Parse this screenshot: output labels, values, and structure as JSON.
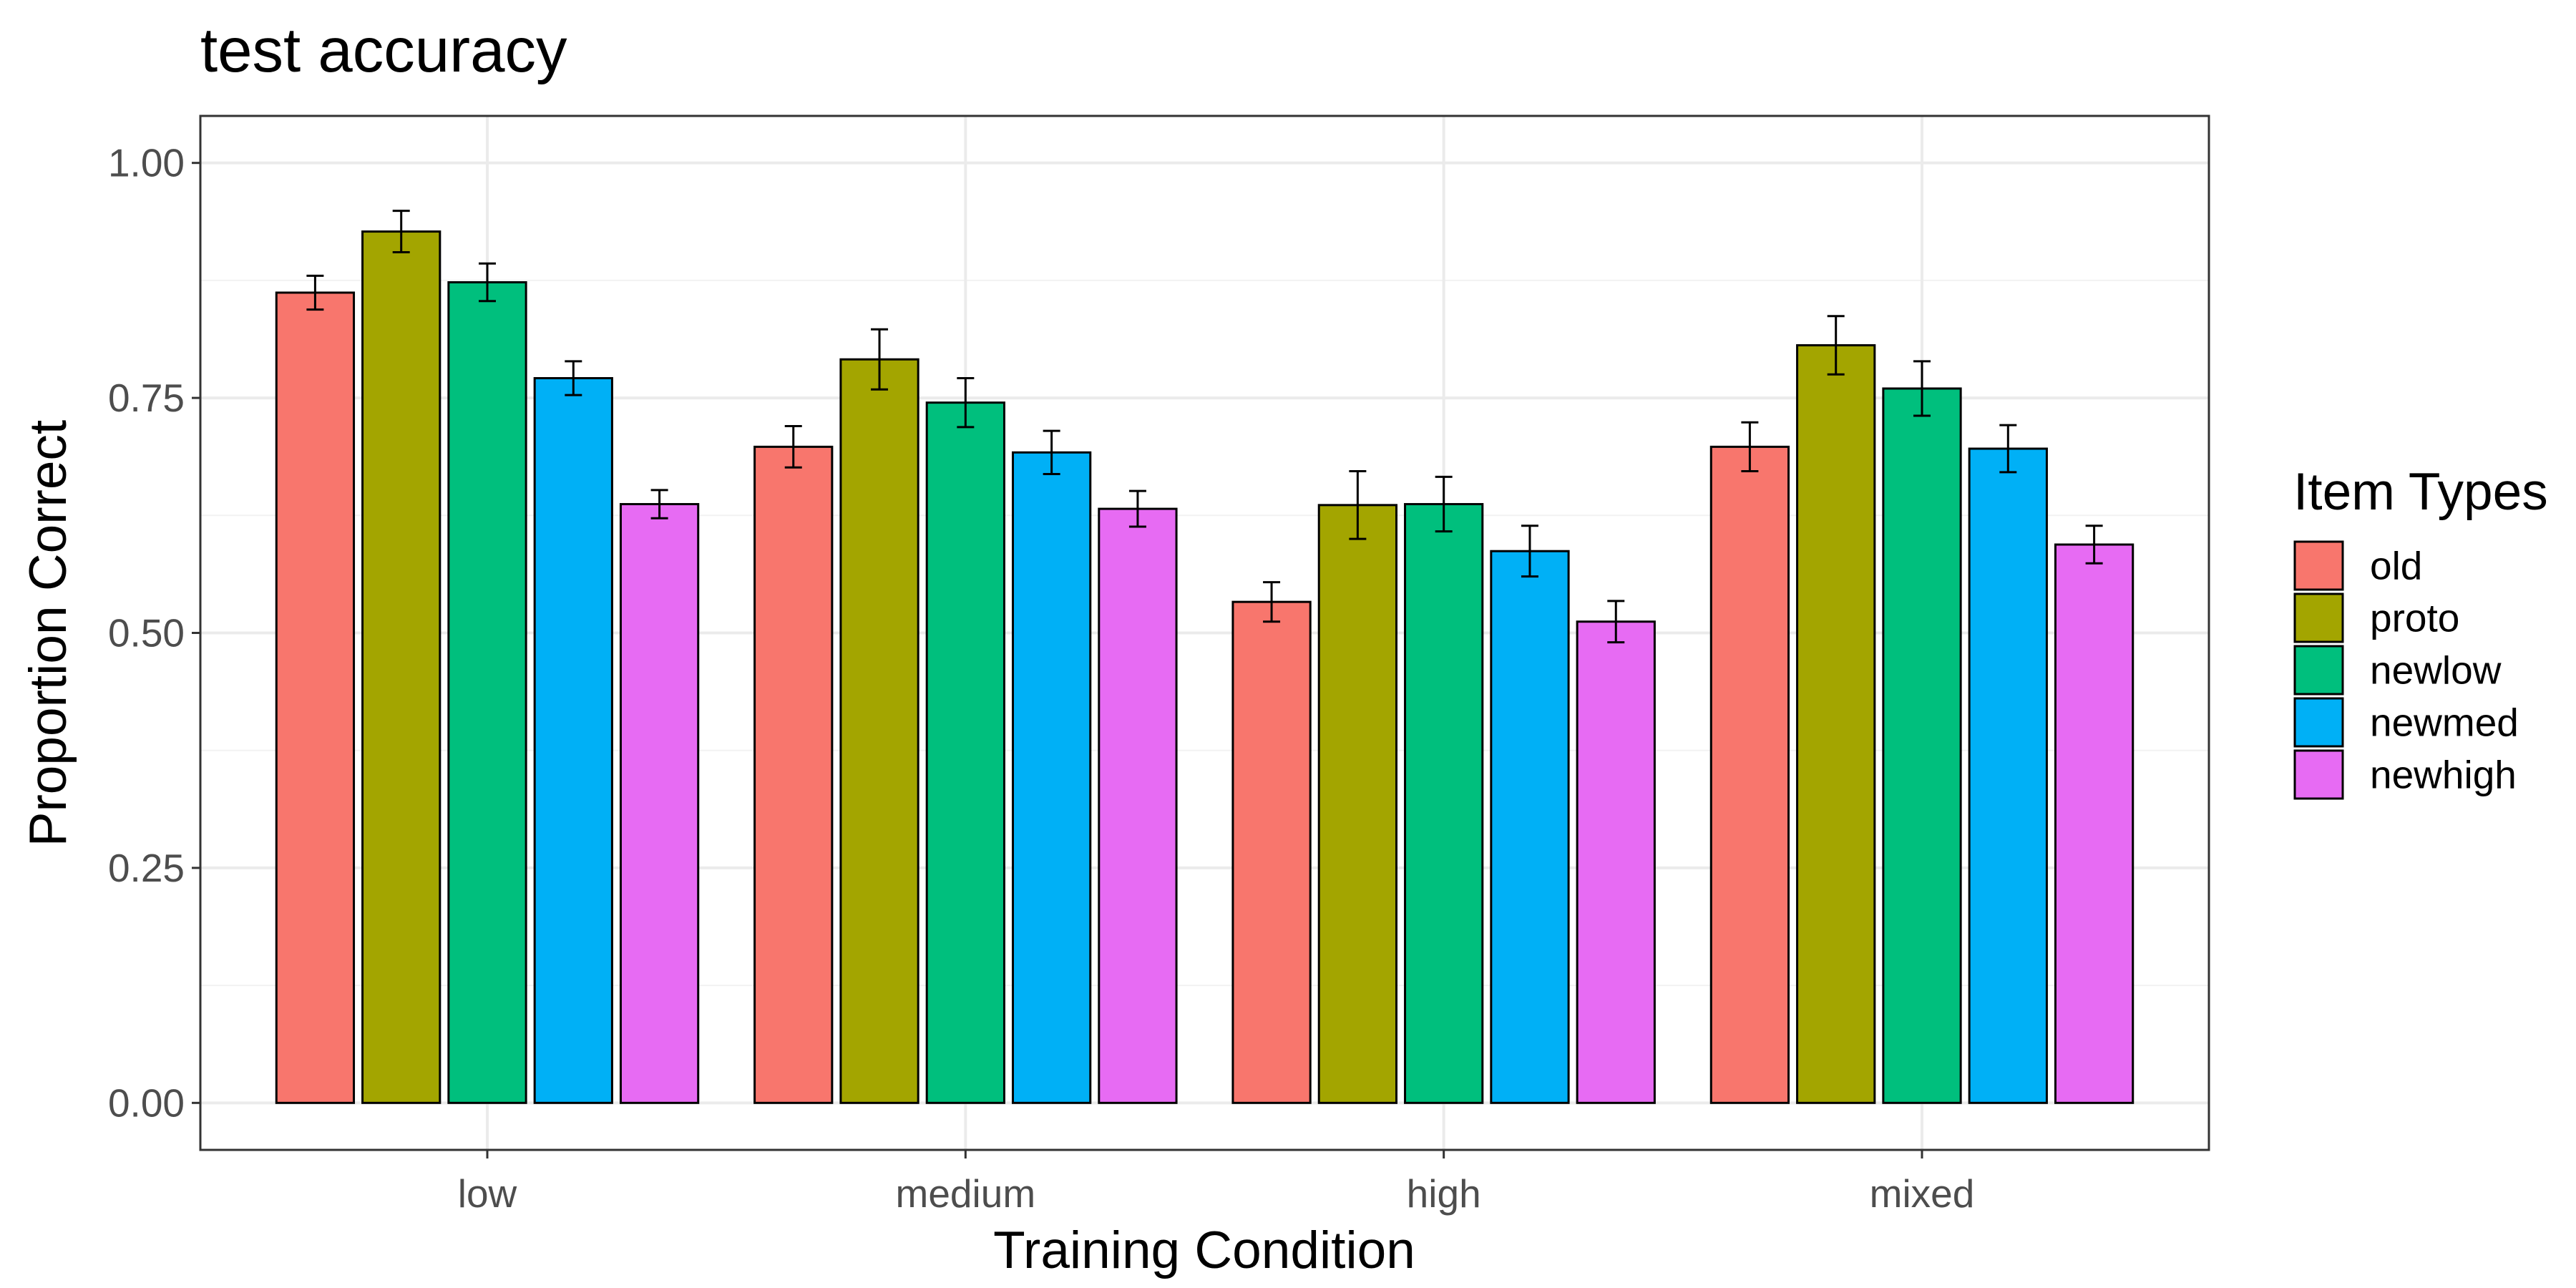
{
  "chart_data": {
    "type": "bar",
    "title": "test accuracy",
    "xlabel": "Training Condition",
    "ylabel": "Proportion Correct",
    "categories": [
      "low",
      "medium",
      "high",
      "mixed"
    ],
    "ylim": [
      -0.05,
      1.05
    ],
    "yticks": [
      0.0,
      0.25,
      0.5,
      0.75,
      1.0
    ],
    "ytick_labels": [
      "0.00",
      "0.25",
      "0.50",
      "0.75",
      "1.00"
    ],
    "grid": true,
    "legend": {
      "title": "Item Types",
      "position": "right"
    },
    "series": [
      {
        "name": "old",
        "color": "#F8766D",
        "values": [
          0.862,
          0.698,
          0.533,
          0.698
        ],
        "errors": [
          0.018,
          0.022,
          0.021,
          0.026
        ]
      },
      {
        "name": "proto",
        "color": "#A3A500",
        "values": [
          0.927,
          0.791,
          0.636,
          0.806
        ],
        "errors": [
          0.022,
          0.032,
          0.036,
          0.031
        ]
      },
      {
        "name": "newlow",
        "color": "#00BF7D",
        "values": [
          0.873,
          0.745,
          0.637,
          0.76
        ],
        "errors": [
          0.02,
          0.026,
          0.029,
          0.029
        ]
      },
      {
        "name": "newmed",
        "color": "#00B0F6",
        "values": [
          0.771,
          0.692,
          0.587,
          0.696
        ],
        "errors": [
          0.018,
          0.023,
          0.027,
          0.025
        ]
      },
      {
        "name": "newhigh",
        "color": "#E76BF3",
        "values": [
          0.637,
          0.632,
          0.512,
          0.594
        ],
        "errors": [
          0.015,
          0.019,
          0.022,
          0.02
        ]
      }
    ]
  }
}
